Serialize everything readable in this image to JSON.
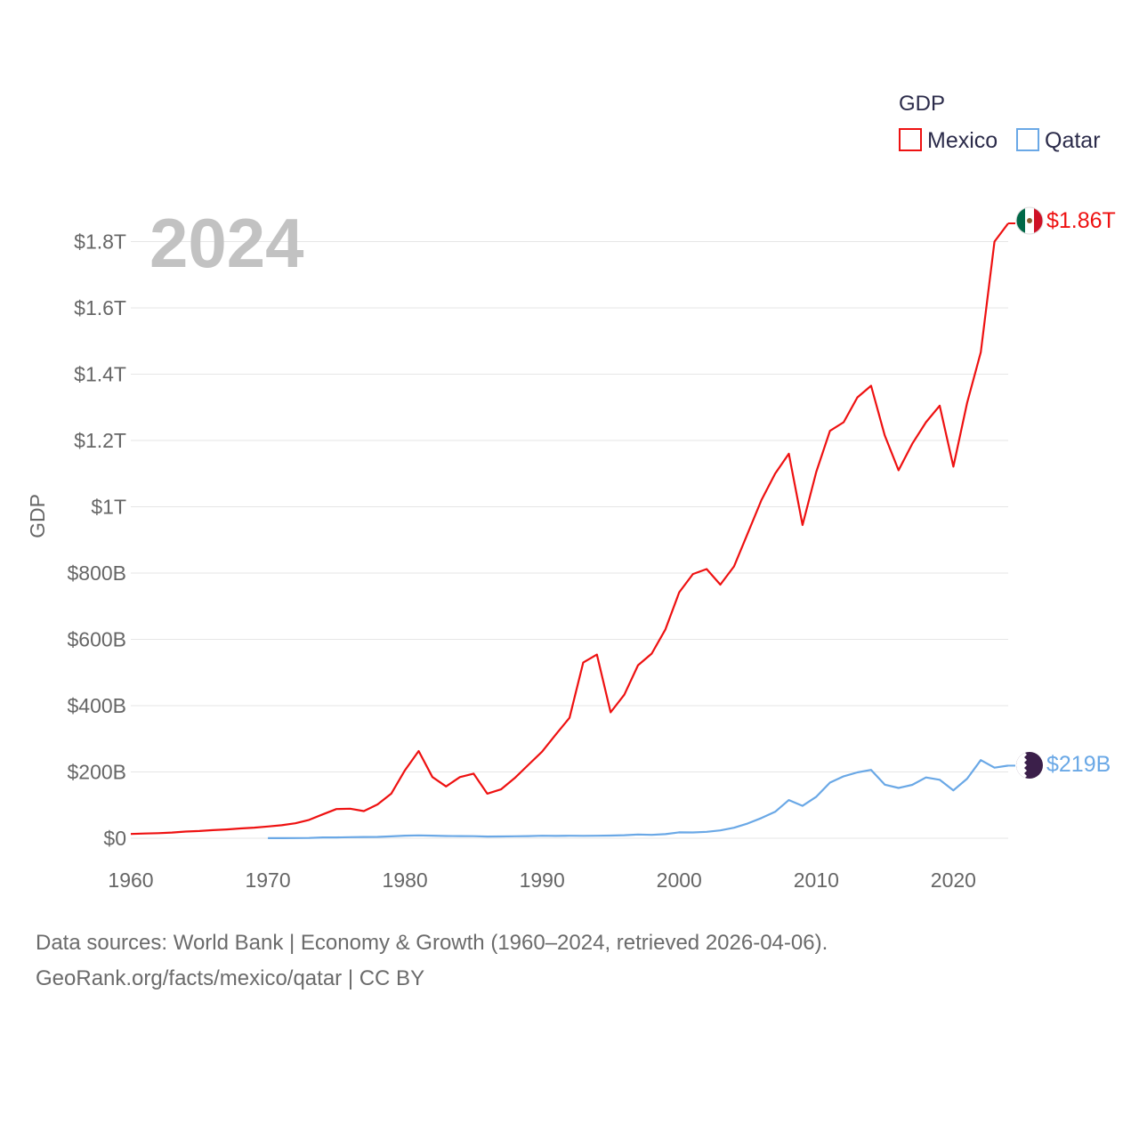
{
  "chart_data": {
    "type": "line",
    "title": "",
    "year_display": "2024",
    "ylabel": "GDP",
    "xlabel": "",
    "xlim": [
      1960,
      2024
    ],
    "ylim": [
      0,
      1800000000000
    ],
    "x_ticks": [
      1960,
      1970,
      1980,
      1990,
      2000,
      2010,
      2020
    ],
    "y_ticks": [
      {
        "value": 0,
        "label": "$0"
      },
      {
        "value": 200000000000,
        "label": "$200B"
      },
      {
        "value": 400000000000,
        "label": "$400B"
      },
      {
        "value": 600000000000,
        "label": "$600B"
      },
      {
        "value": 800000000000,
        "label": "$800B"
      },
      {
        "value": 1000000000000,
        "label": "$1T"
      },
      {
        "value": 1200000000000,
        "label": "$1.2T"
      },
      {
        "value": 1400000000000,
        "label": "$1.4T"
      },
      {
        "value": 1600000000000,
        "label": "$1.6T"
      },
      {
        "value": 1800000000000,
        "label": "$1.8T"
      }
    ],
    "legend_title": "GDP",
    "legend_position": "top-right",
    "series": [
      {
        "name": "Mexico",
        "color": "#ee1111",
        "end_label": "$1.86T",
        "flag_icon": "mexico-flag-icon",
        "points": [
          [
            1960,
            13
          ],
          [
            1961,
            14.2
          ],
          [
            1962,
            15.4
          ],
          [
            1963,
            17.2
          ],
          [
            1964,
            20
          ],
          [
            1965,
            21.8
          ],
          [
            1966,
            24.3
          ],
          [
            1967,
            26.5
          ],
          [
            1968,
            29.4
          ],
          [
            1969,
            32
          ],
          [
            1970,
            35.5
          ],
          [
            1971,
            39.2
          ],
          [
            1972,
            45.2
          ],
          [
            1973,
            55.3
          ],
          [
            1974,
            72
          ],
          [
            1975,
            88
          ],
          [
            1976,
            89
          ],
          [
            1977,
            81.9
          ],
          [
            1978,
            102
          ],
          [
            1979,
            134.5
          ],
          [
            1980,
            205
          ],
          [
            1981,
            263
          ],
          [
            1982,
            184.6
          ],
          [
            1983,
            156.2
          ],
          [
            1984,
            184.5
          ],
          [
            1985,
            195
          ],
          [
            1986,
            134.5
          ],
          [
            1987,
            147.5
          ],
          [
            1988,
            181.6
          ],
          [
            1989,
            221.4
          ],
          [
            1990,
            261.3
          ],
          [
            1991,
            313.1
          ],
          [
            1992,
            363.2
          ],
          [
            1993,
            530
          ],
          [
            1994,
            554
          ],
          [
            1995,
            380
          ],
          [
            1996,
            433
          ],
          [
            1997,
            522
          ],
          [
            1998,
            557
          ],
          [
            1999,
            630
          ],
          [
            2000,
            742
          ],
          [
            2001,
            797
          ],
          [
            2002,
            812
          ],
          [
            2003,
            765
          ],
          [
            2004,
            820
          ],
          [
            2005,
            920
          ],
          [
            2006,
            1020
          ],
          [
            2007,
            1100
          ],
          [
            2008,
            1160
          ],
          [
            2009,
            945
          ],
          [
            2010,
            1105
          ],
          [
            2011,
            1229
          ],
          [
            2012,
            1255
          ],
          [
            2013,
            1330
          ],
          [
            2014,
            1365
          ],
          [
            2015,
            1215
          ],
          [
            2016,
            1110
          ],
          [
            2017,
            1190
          ],
          [
            2018,
            1255
          ],
          [
            2019,
            1305
          ],
          [
            2020,
            1121
          ],
          [
            2021,
            1313
          ],
          [
            2022,
            1466
          ],
          [
            2023,
            1800
          ],
          [
            2024,
            1855
          ]
        ]
      },
      {
        "name": "Qatar",
        "color": "#6aa8e6",
        "end_label": "$219B",
        "flag_icon": "qatar-flag-icon",
        "points": [
          [
            1970,
            0.3
          ],
          [
            1971,
            0.4
          ],
          [
            1972,
            0.6
          ],
          [
            1973,
            0.9
          ],
          [
            1974,
            2.4
          ],
          [
            1975,
            2.5
          ],
          [
            1976,
            3.3
          ],
          [
            1977,
            3.8
          ],
          [
            1978,
            4
          ],
          [
            1979,
            5.6
          ],
          [
            1980,
            7.8
          ],
          [
            1981,
            8.7
          ],
          [
            1982,
            7.9
          ],
          [
            1983,
            6.6
          ],
          [
            1984,
            6.5
          ],
          [
            1985,
            6.2
          ],
          [
            1986,
            5
          ],
          [
            1987,
            5.4
          ],
          [
            1988,
            6
          ],
          [
            1989,
            6.5
          ],
          [
            1990,
            7.4
          ],
          [
            1991,
            7
          ],
          [
            1992,
            7.6
          ],
          [
            1993,
            7.2
          ],
          [
            1994,
            7.4
          ],
          [
            1995,
            8.1
          ],
          [
            1996,
            9.1
          ],
          [
            1997,
            11.3
          ],
          [
            1998,
            10.3
          ],
          [
            1999,
            12.4
          ],
          [
            2000,
            17.8
          ],
          [
            2001,
            17.5
          ],
          [
            2002,
            19.4
          ],
          [
            2003,
            23.5
          ],
          [
            2004,
            31.7
          ],
          [
            2005,
            44.5
          ],
          [
            2006,
            60.9
          ],
          [
            2007,
            79.7
          ],
          [
            2008,
            115.3
          ],
          [
            2009,
            97.8
          ],
          [
            2010,
            125.1
          ],
          [
            2011,
            167.8
          ],
          [
            2012,
            186.8
          ],
          [
            2013,
            198.7
          ],
          [
            2014,
            206.2
          ],
          [
            2015,
            161.7
          ],
          [
            2016,
            151.7
          ],
          [
            2017,
            161.1
          ],
          [
            2018,
            183.3
          ],
          [
            2019,
            176.4
          ],
          [
            2020,
            144.4
          ],
          [
            2021,
            179.6
          ],
          [
            2022,
            235.7
          ],
          [
            2023,
            213
          ],
          [
            2024,
            219
          ]
        ]
      }
    ],
    "value_unit": "billions USD"
  },
  "footer": {
    "line1": "Data sources: World Bank | Economy & Growth (1960–2024, retrieved 2026-04-06).",
    "line2": "GeoRank.org/facts/mexico/qatar | CC BY"
  }
}
